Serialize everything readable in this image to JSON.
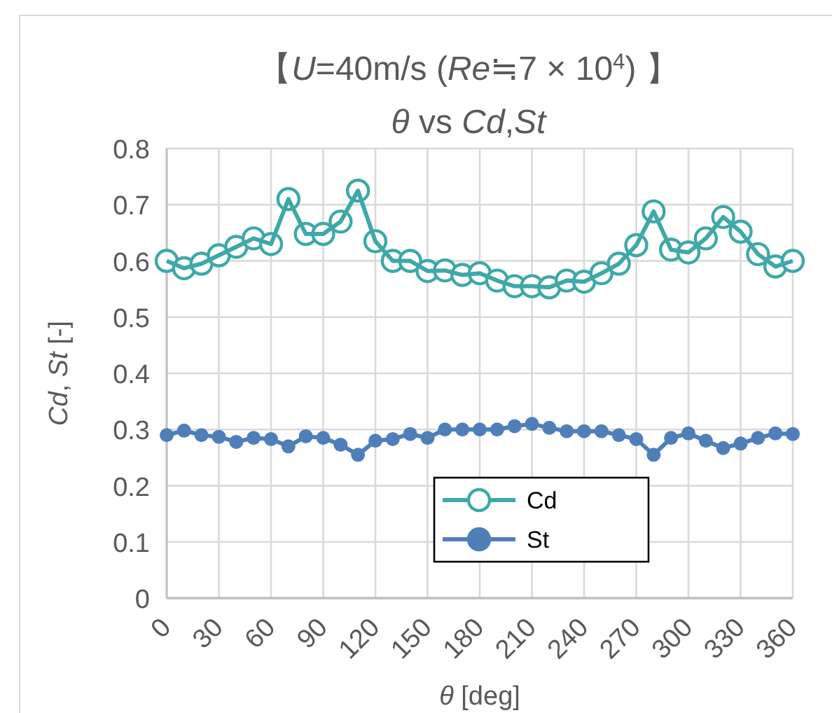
{
  "chart_data": {
    "type": "line",
    "title": "【*U*=40m/s (*Re*≒7 × 10$^{4}$) 】",
    "subtitle": "*θ* vs *Cd*,*St*",
    "xlabel": "*θ* [deg]",
    "ylabel": "*Cd*, *St* [-]",
    "x": [
      0,
      10,
      20,
      30,
      40,
      50,
      60,
      70,
      80,
      90,
      100,
      110,
      120,
      130,
      140,
      150,
      160,
      170,
      180,
      190,
      200,
      210,
      220,
      230,
      240,
      250,
      260,
      270,
      280,
      290,
      300,
      310,
      320,
      330,
      340,
      350,
      360
    ],
    "xlim": [
      0,
      360
    ],
    "xticks": [
      0,
      30,
      60,
      90,
      120,
      150,
      180,
      210,
      240,
      270,
      300,
      330,
      360
    ],
    "ylim": [
      0,
      0.8
    ],
    "yticks": [
      0,
      0.1,
      0.2,
      0.3,
      0.4,
      0.5,
      0.6,
      0.7,
      0.8
    ],
    "grid": true,
    "legend": "bottom",
    "marker": "circle",
    "line_style": "solid",
    "series": [
      {
        "name": "Cd",
        "color": "#3fa8a8",
        "values": [
          0.6,
          0.587,
          0.595,
          0.61,
          0.625,
          0.64,
          0.63,
          0.71,
          0.648,
          0.648,
          0.67,
          0.725,
          0.635,
          0.6,
          0.6,
          0.582,
          0.583,
          0.575,
          0.578,
          0.565,
          0.555,
          0.555,
          0.553,
          0.565,
          0.563,
          0.578,
          0.595,
          0.628,
          0.688,
          0.62,
          0.615,
          0.64,
          0.678,
          0.652,
          0.612,
          0.59,
          0.6
        ]
      },
      {
        "name": "St",
        "color": "#4f7fb9",
        "values": [
          0.29,
          0.298,
          0.29,
          0.287,
          0.278,
          0.285,
          0.283,
          0.27,
          0.288,
          0.285,
          0.273,
          0.255,
          0.28,
          0.283,
          0.292,
          0.285,
          0.3,
          0.3,
          0.3,
          0.3,
          0.306,
          0.31,
          0.303,
          0.297,
          0.297,
          0.297,
          0.29,
          0.283,
          0.255,
          0.285,
          0.293,
          0.28,
          0.267,
          0.275,
          0.285,
          0.293,
          0.292
        ]
      }
    ]
  }
}
